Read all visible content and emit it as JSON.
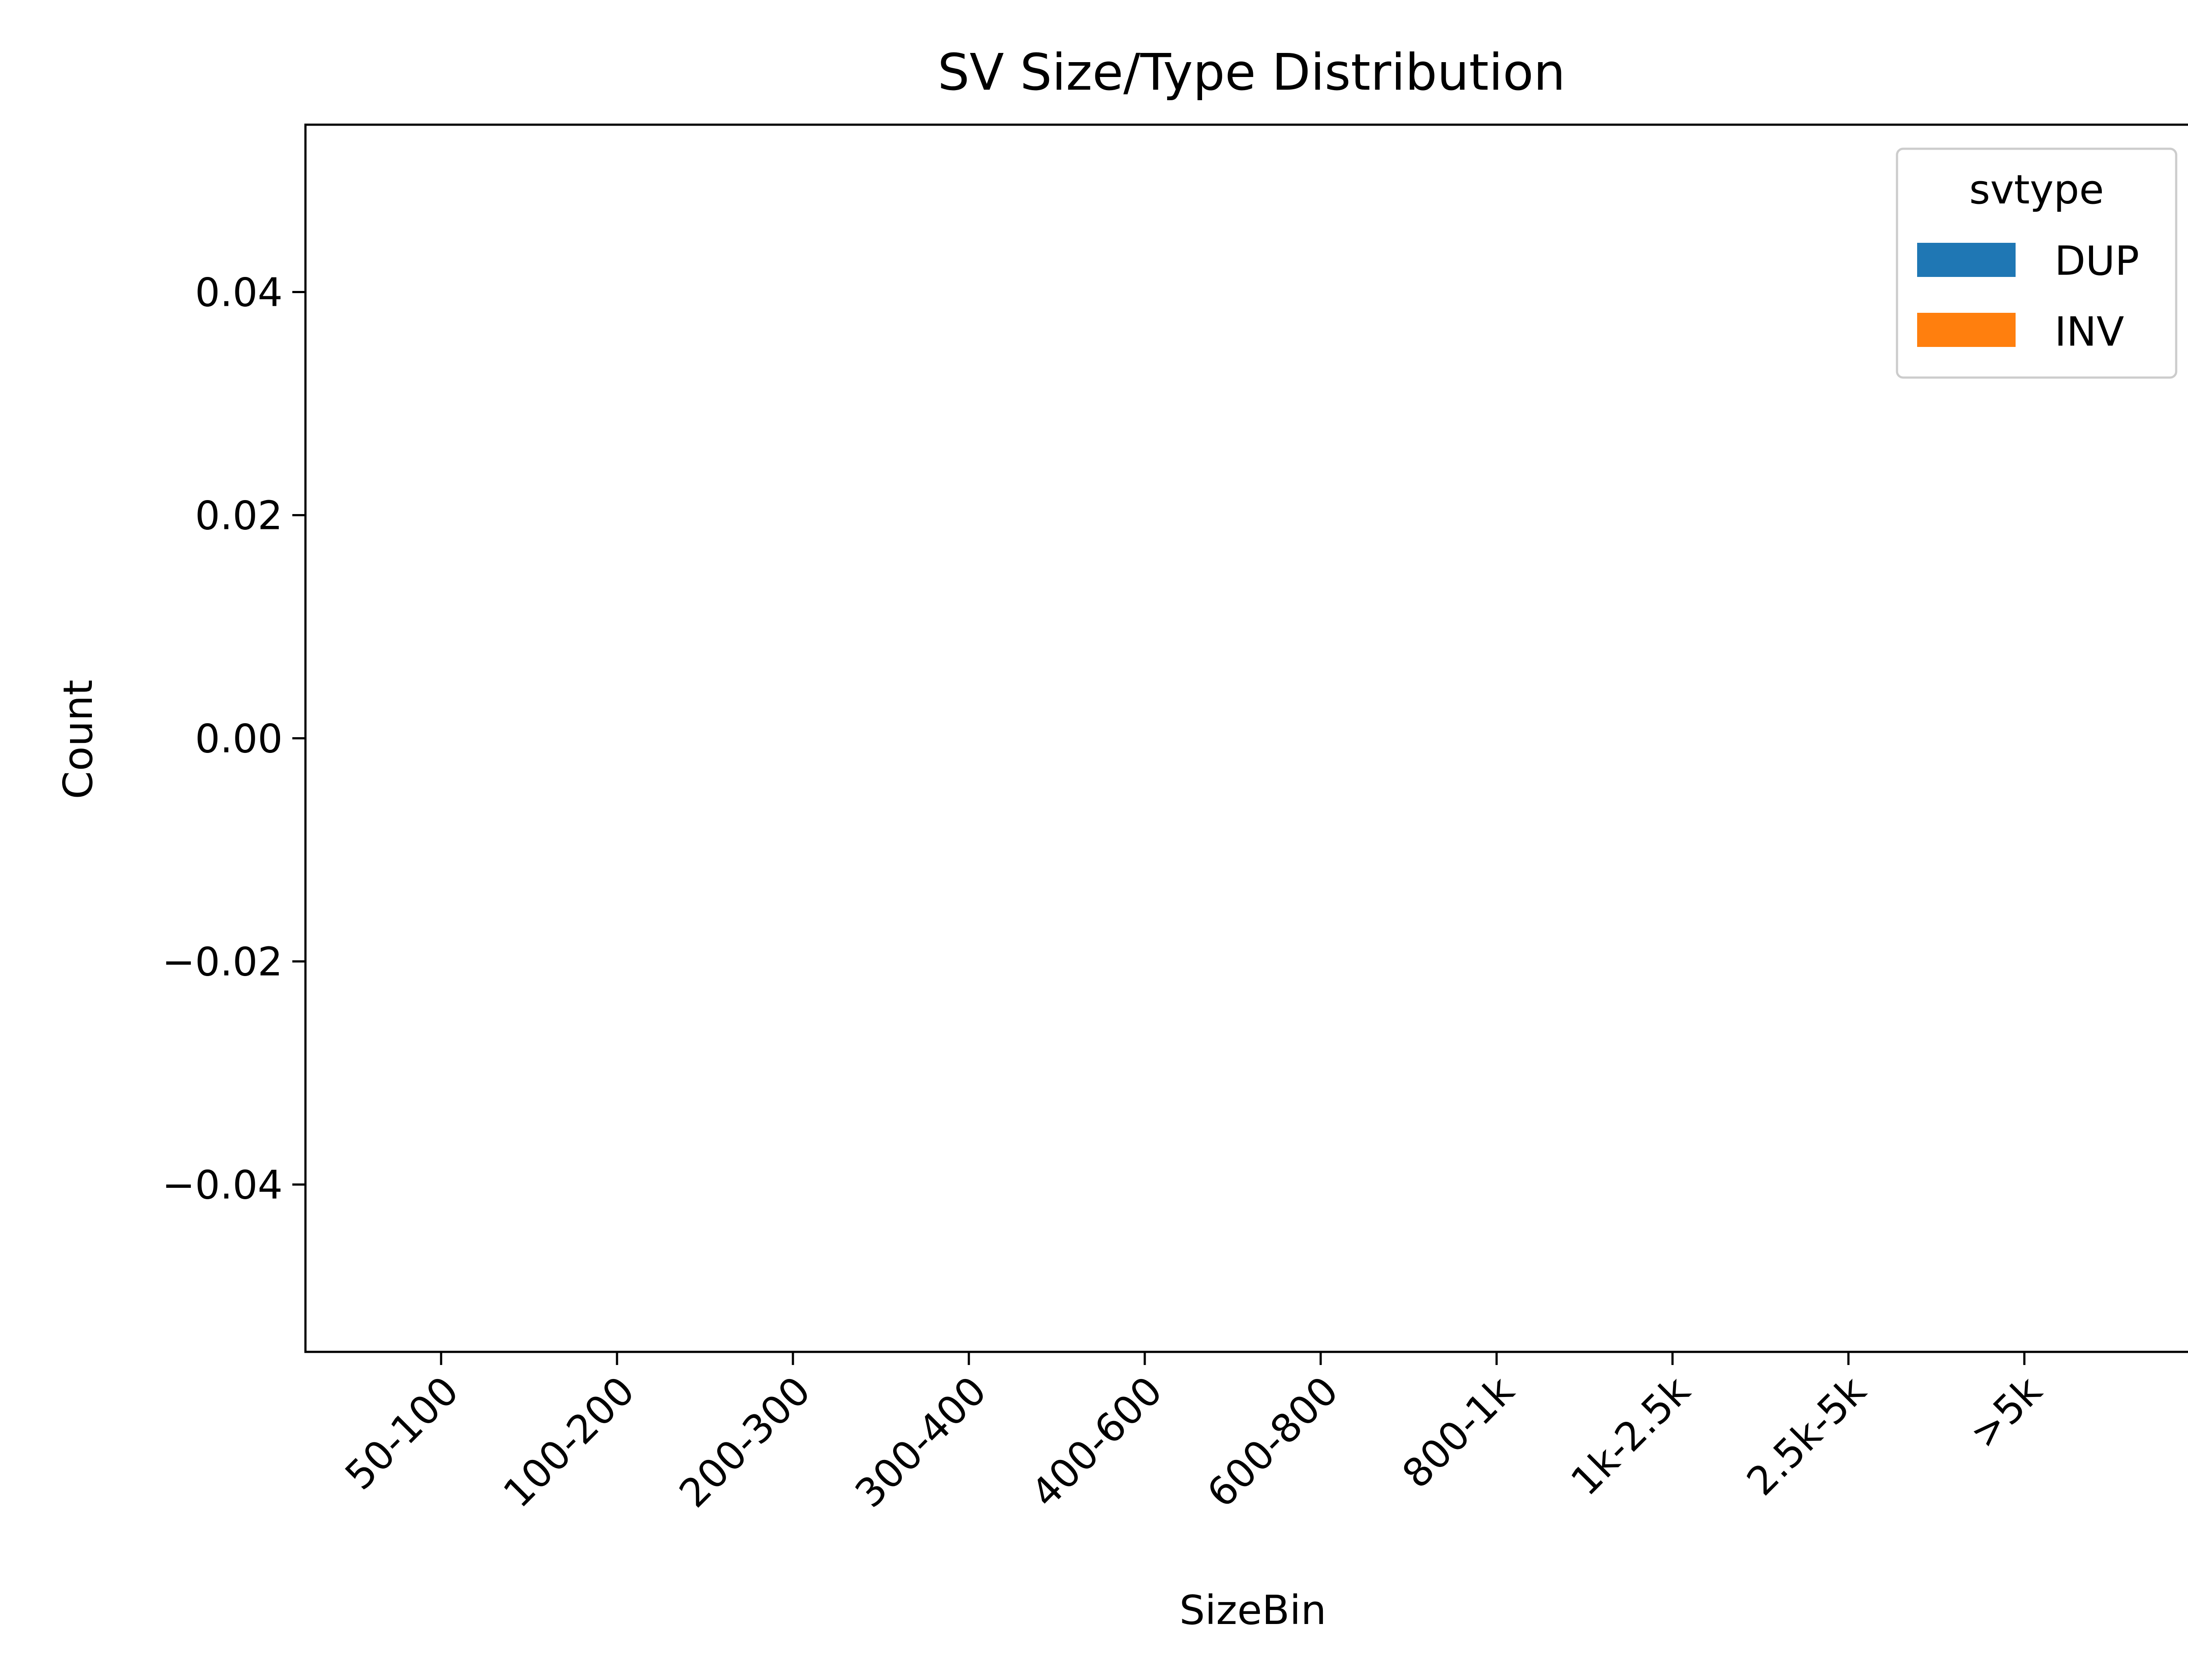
{
  "chart_data": {
    "type": "bar",
    "title": "SV Size/Type Distribution",
    "xlabel": "SizeBin",
    "ylabel": "Count",
    "categories": [
      "50-100",
      "100-200",
      "200-300",
      "300-400",
      "400-600",
      "600-800",
      "800-1k",
      "1k-2.5k",
      "2.5k-5k",
      ">5k"
    ],
    "ylim": [
      -0.055,
      0.055
    ],
    "yticks": [
      0.04,
      0.02,
      0.0,
      -0.02,
      -0.04
    ],
    "ytick_labels": [
      "0.04",
      "0.02",
      "0.00",
      "−0.02",
      "−0.04"
    ],
    "stacked": true,
    "grid": false,
    "legend": {
      "title": "svtype",
      "placement": "top-right",
      "entries": [
        {
          "label": "DUP",
          "color": "#1f77b4"
        },
        {
          "label": "INV",
          "color": "#ff7f0e"
        }
      ]
    },
    "series": [
      {
        "name": "DUP",
        "color": "#1f77b4",
        "values": [
          0,
          0,
          0,
          0,
          0,
          0,
          0,
          0,
          0,
          0
        ]
      },
      {
        "name": "INV",
        "color": "#ff7f0e",
        "values": [
          0,
          0,
          0,
          0,
          0,
          0,
          0,
          0,
          0,
          0
        ]
      }
    ]
  }
}
